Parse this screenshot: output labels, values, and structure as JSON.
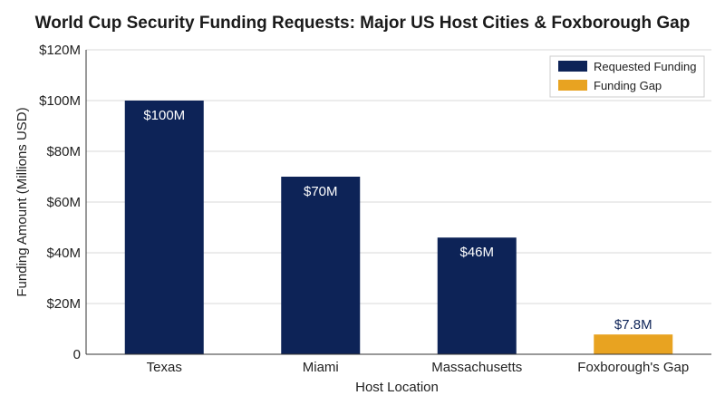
{
  "chart_data": {
    "type": "bar",
    "title": "World Cup Security Funding Requests: Major US Host Cities & Foxborough Gap",
    "xlabel": "Host Location",
    "ylabel": "Funding Amount (Millions USD)",
    "ylim": [
      0,
      120
    ],
    "yticks": [
      0,
      20,
      40,
      60,
      80,
      100,
      120
    ],
    "ytick_labels": [
      "0",
      "$20M",
      "$40M",
      "$60M",
      "$80M",
      "$100M",
      "$120M"
    ],
    "categories": [
      "Texas",
      "Miami",
      "Massachusetts",
      "Foxborough's Gap"
    ],
    "series": [
      {
        "name": "Requested Funding",
        "color": "#0d2357",
        "label_color": "#ffffff",
        "values": [
          100,
          70,
          46,
          null
        ],
        "labels": [
          "$100M",
          "$70M",
          "$46M",
          ""
        ]
      },
      {
        "name": "Funding Gap",
        "color": "#e8a321",
        "label_color": "#0d2357",
        "values": [
          null,
          null,
          null,
          7.8
        ],
        "labels": [
          "",
          "",
          "",
          "$7.8M"
        ]
      }
    ],
    "grid": true,
    "legend_position": "top-right"
  }
}
